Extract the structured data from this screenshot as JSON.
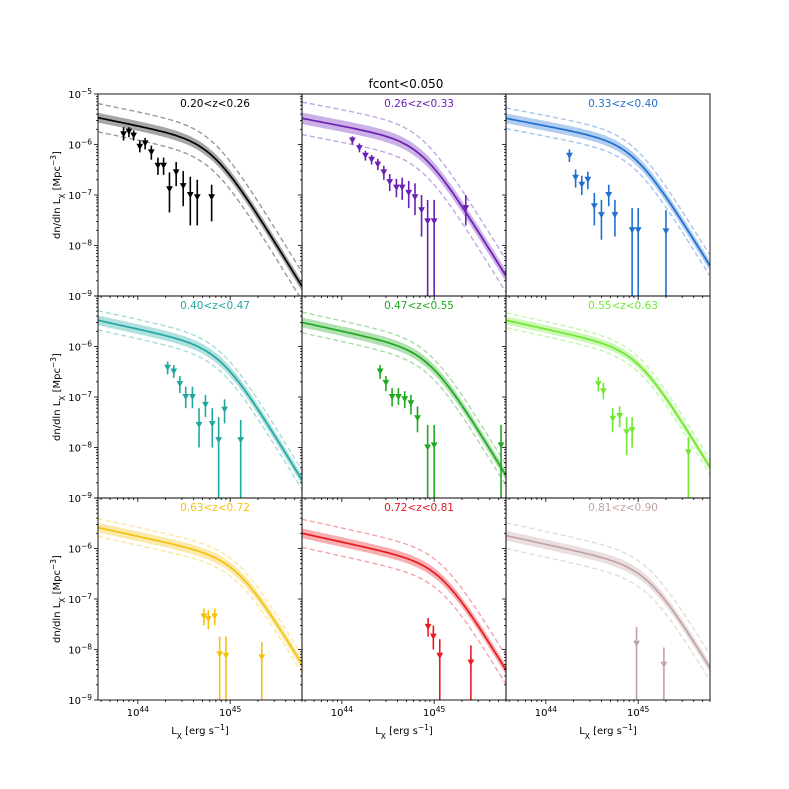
{
  "chart_data": {
    "type": "scatter",
    "title": "fcont<0.050",
    "xlabel": "L$_X$ [erg s$^{-1}$]",
    "ylabel": "dn/dln L$_X$ [Mpc$^{-3}$]",
    "xscale": "log",
    "yscale": "log",
    "xlim": [
      3.7e+43,
      6e+45
    ],
    "ylim": [
      1e-09,
      1e-05
    ],
    "xtick_labels": [
      "10^44",
      "10^45"
    ],
    "ytick_labels": [
      "10^-9",
      "10^-8",
      "10^-7",
      "10^-6",
      "10^-5"
    ],
    "panels": [
      {
        "label": "0.20<z<0.26",
        "color": "#000000",
        "model": {
          "amp": 3.4e-06,
          "knee": 6.5e+44,
          "alpha": 0.75,
          "band": 1.25,
          "outer": 1.9
        },
        "points": [
          {
            "x": 7e+43,
            "y": 1.6e-06,
            "lo": 1.2e-06,
            "hi": 2.2e-06
          },
          {
            "x": 8e+43,
            "y": 1.8e-06,
            "lo": 1.4e-06,
            "hi": 2.2e-06
          },
          {
            "x": 9e+43,
            "y": 1.5e-06,
            "lo": 1.2e-06,
            "hi": 1.9e-06
          },
          {
            "x": 1.05e+44,
            "y": 9e-07,
            "lo": 7e-07,
            "hi": 1.2e-06
          },
          {
            "x": 1.2e+44,
            "y": 1.05e-06,
            "lo": 8e-07,
            "hi": 1.35e-06
          },
          {
            "x": 1.4e+44,
            "y": 7e-07,
            "lo": 5e-07,
            "hi": 9.5e-07
          },
          {
            "x": 1.65e+44,
            "y": 3.8e-07,
            "lo": 2.5e-07,
            "hi": 5.5e-07
          },
          {
            "x": 1.9e+44,
            "y": 3.8e-07,
            "lo": 2.5e-07,
            "hi": 5.5e-07
          },
          {
            "x": 2.2e+44,
            "y": 1.3e-07,
            "lo": 4.5e-08,
            "hi": 2.8e-07
          },
          {
            "x": 2.6e+44,
            "y": 2.8e-07,
            "lo": 1.5e-07,
            "hi": 4.5e-07
          },
          {
            "x": 3.1e+44,
            "y": 1.5e-07,
            "lo": 6e-08,
            "hi": 3e-07
          },
          {
            "x": 3.7e+44,
            "y": 1e-07,
            "lo": 2.5e-08,
            "hi": 2.3e-07
          },
          {
            "x": 4.4e+44,
            "y": 9e-08,
            "lo": 2.5e-08,
            "hi": 2e-07
          },
          {
            "x": 6.3e+44,
            "y": 9e-08,
            "lo": 3e-08,
            "hi": 1.6e-07
          }
        ]
      },
      {
        "label": "0.26<z<0.33",
        "color": "#6a1fb5",
        "model": {
          "amp": 3.3e-06,
          "knee": 7.5e+44,
          "alpha": 0.7,
          "band": 1.3,
          "outer": 2.1
        },
        "points": [
          {
            "x": 1.3e+44,
            "y": 1.2e-06,
            "lo": 1e-06,
            "hi": 1.45e-06
          },
          {
            "x": 1.55e+44,
            "y": 8.5e-07,
            "lo": 7e-07,
            "hi": 1.05e-06
          },
          {
            "x": 1.8e+44,
            "y": 6e-07,
            "lo": 4.8e-07,
            "hi": 7.5e-07
          },
          {
            "x": 2.1e+44,
            "y": 5e-07,
            "lo": 4e-07,
            "hi": 6.2e-07
          },
          {
            "x": 2.45e+44,
            "y": 4e-07,
            "lo": 3.1e-07,
            "hi": 5.2e-07
          },
          {
            "x": 2.85e+44,
            "y": 2.8e-07,
            "lo": 2e-07,
            "hi": 3.8e-07
          },
          {
            "x": 3.3e+44,
            "y": 1.8e-07,
            "lo": 1.2e-07,
            "hi": 2.6e-07
          },
          {
            "x": 3.9e+44,
            "y": 1.4e-07,
            "lo": 9e-08,
            "hi": 2.1e-07
          },
          {
            "x": 4.5e+44,
            "y": 1.4e-07,
            "lo": 8e-08,
            "hi": 2.2e-07
          },
          {
            "x": 5.3e+44,
            "y": 1.1e-07,
            "lo": 5.5e-08,
            "hi": 1.9e-07
          },
          {
            "x": 6.2e+44,
            "y": 9e-08,
            "lo": 4e-08,
            "hi": 1.7e-07
          },
          {
            "x": 7.3e+44,
            "y": 5e-08,
            "lo": 1.5e-08,
            "hi": 1e-07
          },
          {
            "x": 8.5e+44,
            "y": 3e-08,
            "lo": 1e-09,
            "hi": 8e-08
          },
          {
            "x": 1e+45,
            "y": 3e-08,
            "lo": 1e-09,
            "hi": 8e-08
          },
          {
            "x": 2.2e+45,
            "y": 5.5e-08,
            "lo": 2.5e-08,
            "hi": 1e-07
          }
        ]
      },
      {
        "label": "0.33<z<0.40",
        "color": "#1f6fd1",
        "model": {
          "amp": 3.3e-06,
          "knee": 9e+44,
          "alpha": 0.7,
          "band": 1.25,
          "outer": 1.6
        },
        "points": [
          {
            "x": 1.8e+44,
            "y": 6e-07,
            "lo": 4.5e-07,
            "hi": 8e-07
          },
          {
            "x": 2.1e+44,
            "y": 2.2e-07,
            "lo": 1.4e-07,
            "hi": 3.2e-07
          },
          {
            "x": 2.45e+44,
            "y": 1.6e-07,
            "lo": 1e-07,
            "hi": 2.4e-07
          },
          {
            "x": 2.85e+44,
            "y": 2e-07,
            "lo": 1.3e-07,
            "hi": 2.9e-07
          },
          {
            "x": 3.35e+44,
            "y": 6e-08,
            "lo": 2.5e-08,
            "hi": 1.1e-07
          },
          {
            "x": 4e+44,
            "y": 4e-08,
            "lo": 1.3e-08,
            "hi": 8e-08
          },
          {
            "x": 4.8e+44,
            "y": 1e-07,
            "lo": 6e-08,
            "hi": 1.6e-07
          },
          {
            "x": 5.6e+44,
            "y": 4e-08,
            "lo": 1.5e-08,
            "hi": 8e-08
          },
          {
            "x": 8.6e+44,
            "y": 2e-08,
            "lo": 1e-09,
            "hi": 5.5e-08
          },
          {
            "x": 1e+45,
            "y": 2e-08,
            "lo": 1e-09,
            "hi": 5.5e-08
          },
          {
            "x": 2e+45,
            "y": 1.9e-08,
            "lo": 1e-09,
            "hi": 5e-08
          }
        ]
      },
      {
        "label": "0.40<z<0.47",
        "color": "#20a8a0",
        "model": {
          "amp": 3.3e-06,
          "knee": 8e+44,
          "alpha": 0.8,
          "band": 1.25,
          "outer": 1.55
        },
        "points": [
          {
            "x": 2.1e+44,
            "y": 3.8e-07,
            "lo": 2.8e-07,
            "hi": 5e-07
          },
          {
            "x": 2.45e+44,
            "y": 3.2e-07,
            "lo": 2.4e-07,
            "hi": 4.3e-07
          },
          {
            "x": 2.85e+44,
            "y": 1.8e-07,
            "lo": 1.2e-07,
            "hi": 2.6e-07
          },
          {
            "x": 3.3e+44,
            "y": 1e-07,
            "lo": 6e-08,
            "hi": 1.6e-07
          },
          {
            "x": 3.9e+44,
            "y": 1e-07,
            "lo": 6e-08,
            "hi": 1.6e-07
          },
          {
            "x": 4.6e+44,
            "y": 2.8e-08,
            "lo": 1e-08,
            "hi": 6e-08
          },
          {
            "x": 5.4e+44,
            "y": 7e-08,
            "lo": 4e-08,
            "hi": 1.1e-07
          },
          {
            "x": 6.4e+44,
            "y": 2.9e-08,
            "lo": 1e-08,
            "hi": 6e-08
          },
          {
            "x": 7.5e+44,
            "y": 1.4e-08,
            "lo": 1e-09,
            "hi": 4e-08
          },
          {
            "x": 8.7e+44,
            "y": 5.6e-08,
            "lo": 3e-08,
            "hi": 9e-08
          },
          {
            "x": 1.3e+45,
            "y": 1.4e-08,
            "lo": 1e-09,
            "hi": 3.5e-08
          }
        ]
      },
      {
        "label": "0.47<z<0.55",
        "color": "#1fa91f",
        "model": {
          "amp": 3e-06,
          "knee": 9e+44,
          "alpha": 0.8,
          "band": 1.25,
          "outer": 1.6
        },
        "points": [
          {
            "x": 2.6e+44,
            "y": 3.2e-07,
            "lo": 2.3e-07,
            "hi": 4.3e-07
          },
          {
            "x": 3e+44,
            "y": 1.9e-07,
            "lo": 1.3e-07,
            "hi": 2.6e-07
          },
          {
            "x": 3.5e+44,
            "y": 1e-07,
            "lo": 6.5e-08,
            "hi": 1.5e-07
          },
          {
            "x": 4.1e+44,
            "y": 1e-07,
            "lo": 7e-08,
            "hi": 1.5e-07
          },
          {
            "x": 4.8e+44,
            "y": 9e-08,
            "lo": 6e-08,
            "hi": 1.3e-07
          },
          {
            "x": 5.6e+44,
            "y": 7.5e-08,
            "lo": 4.5e-08,
            "hi": 1.1e-07
          },
          {
            "x": 6.6e+44,
            "y": 3.8e-08,
            "lo": 2e-08,
            "hi": 6.5e-08
          },
          {
            "x": 8.5e+44,
            "y": 1e-08,
            "lo": 1e-09,
            "hi": 2.8e-08
          },
          {
            "x": 1e+45,
            "y": 1.1e-08,
            "lo": 1e-09,
            "hi": 2.8e-08
          },
          {
            "x": 5.3e+45,
            "y": 1.1e-08,
            "lo": 1e-09,
            "hi": 2.8e-08
          }
        ]
      },
      {
        "label": "0.55<z<0.63",
        "color": "#6fe82f",
        "model": {
          "amp": 3.3e-06,
          "knee": 1e+45,
          "alpha": 0.8,
          "band": 1.2,
          "outer": 1.4
        },
        "points": [
          {
            "x": 3.7e+44,
            "y": 1.8e-07,
            "lo": 1.3e-07,
            "hi": 2.5e-07
          },
          {
            "x": 4.2e+44,
            "y": 1.3e-07,
            "lo": 9e-08,
            "hi": 1.9e-07
          },
          {
            "x": 5.3e+44,
            "y": 3.7e-08,
            "lo": 2e-08,
            "hi": 6e-08
          },
          {
            "x": 6.3e+44,
            "y": 4.2e-08,
            "lo": 2.5e-08,
            "hi": 6.5e-08
          },
          {
            "x": 7.5e+44,
            "y": 2e-08,
            "lo": 7e-09,
            "hi": 4e-08
          },
          {
            "x": 8.6e+44,
            "y": 2.2e-08,
            "lo": 1e-08,
            "hi": 4e-08
          },
          {
            "x": 3.5e+45,
            "y": 8e-09,
            "lo": 1e-09,
            "hi": 1.6e-08
          }
        ]
      },
      {
        "label": "0.63<z<0.72",
        "color": "#f4c20d",
        "model": {
          "amp": 2.6e-06,
          "knee": 1.2e+45,
          "alpha": 0.8,
          "band": 1.25,
          "outer": 1.5
        },
        "points": [
          {
            "x": 5.2e+44,
            "y": 4.5e-08,
            "lo": 3e-08,
            "hi": 6.5e-08
          },
          {
            "x": 5.8e+44,
            "y": 4e-08,
            "lo": 2.5e-08,
            "hi": 6e-08
          },
          {
            "x": 6.8e+44,
            "y": 4.5e-08,
            "lo": 3e-08,
            "hi": 6.5e-08
          },
          {
            "x": 7.7e+44,
            "y": 8e-09,
            "lo": 1e-09,
            "hi": 1.8e-08
          },
          {
            "x": 9e+44,
            "y": 7.5e-09,
            "lo": 1e-09,
            "hi": 1.8e-08
          },
          {
            "x": 2.2e+45,
            "y": 7e-09,
            "lo": 1e-09,
            "hi": 1.4e-08
          }
        ]
      },
      {
        "label": "0.72<z<0.81",
        "color": "#e8191f",
        "model": {
          "amp": 2e-06,
          "knee": 1.2e+45,
          "alpha": 0.8,
          "band": 1.25,
          "outer": 1.9
        },
        "points": [
          {
            "x": 8.6e+44,
            "y": 2.8e-08,
            "lo": 1.8e-08,
            "hi": 4.2e-08
          },
          {
            "x": 9.8e+44,
            "y": 1.8e-08,
            "lo": 1e-08,
            "hi": 3e-08
          },
          {
            "x": 1.15e+45,
            "y": 7.5e-09,
            "lo": 1e-09,
            "hi": 1.6e-08
          },
          {
            "x": 2.5e+45,
            "y": 5.5e-09,
            "lo": 1e-09,
            "hi": 1.2e-08
          }
        ]
      },
      {
        "label": "0.81<z<0.90",
        "color": "#c2a3a3",
        "model": {
          "amp": 1.8e-06,
          "knee": 1.3e+45,
          "alpha": 0.8,
          "band": 1.25,
          "outer": 1.8
        },
        "points": [
          {
            "x": 9.6e+44,
            "y": 1.3e-08,
            "lo": 1e-09,
            "hi": 2.8e-08
          },
          {
            "x": 1.9e+45,
            "y": 5e-09,
            "lo": 1e-09,
            "hi": 1.1e-08
          }
        ]
      }
    ]
  }
}
